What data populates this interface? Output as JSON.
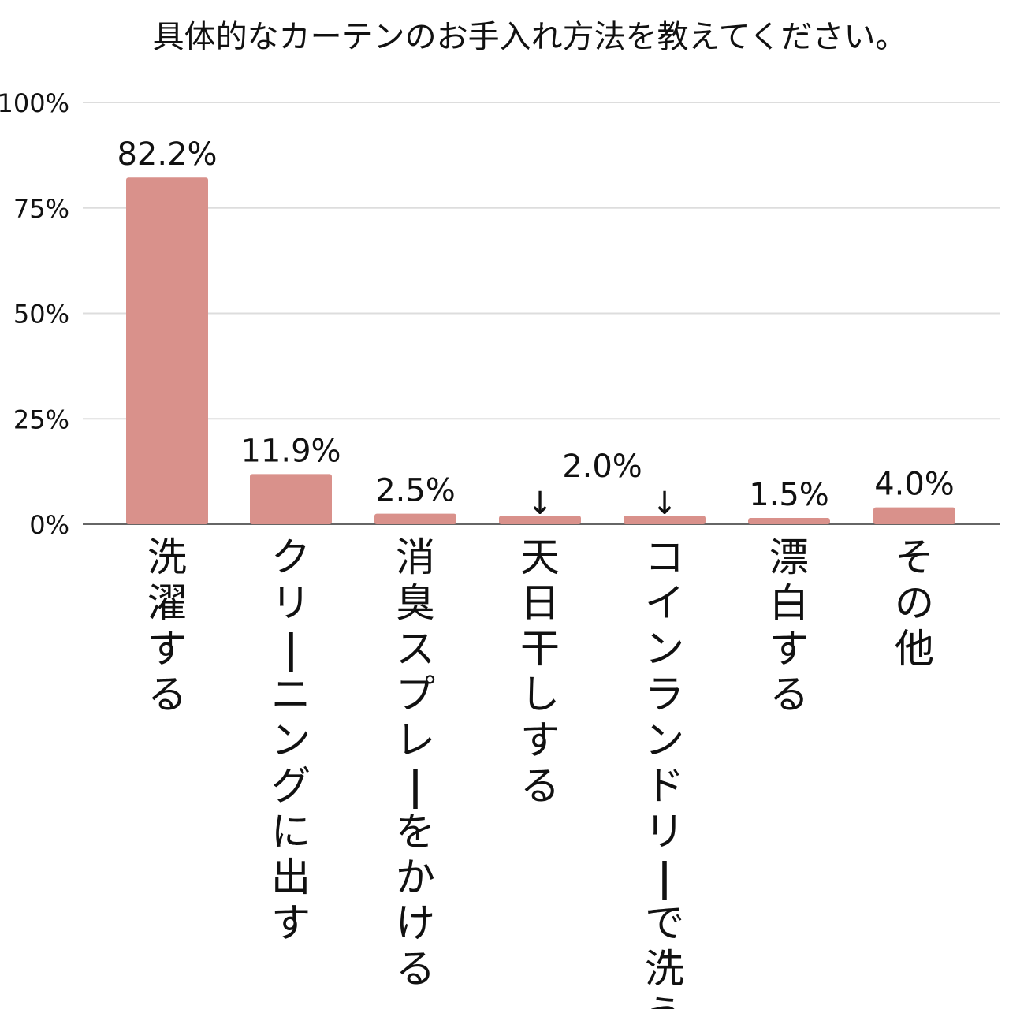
{
  "chart_data": {
    "type": "bar",
    "title": "具体的なカーテンのお手入れ方法を教えてください。",
    "categories": [
      "洗濯する",
      "クリーニングに出す",
      "消臭スプレーをかける",
      "天日干しする",
      "コインランドリーで洗う",
      "漂白する",
      "その他"
    ],
    "values": [
      82.2,
      11.9,
      2.5,
      2.0,
      2.0,
      1.5,
      4.0
    ],
    "data_labels": [
      "82.2%",
      "11.9%",
      "2.5%",
      "",
      "",
      "1.5%",
      "4.0%"
    ],
    "shared_label": {
      "text": "2.0%",
      "arrow": "↓",
      "applies_to": [
        3,
        4
      ]
    },
    "yticks": [
      "0%",
      "25%",
      "50%",
      "75%",
      "100%"
    ],
    "ytick_values": [
      0,
      25,
      50,
      75,
      100
    ],
    "ylim": [
      0,
      100
    ],
    "xlabel": "",
    "ylabel": "",
    "grid": true,
    "colors": {
      "bar": "#d9918b",
      "grid": "#dddddd",
      "axis": "#666666",
      "text": "#111111"
    }
  }
}
